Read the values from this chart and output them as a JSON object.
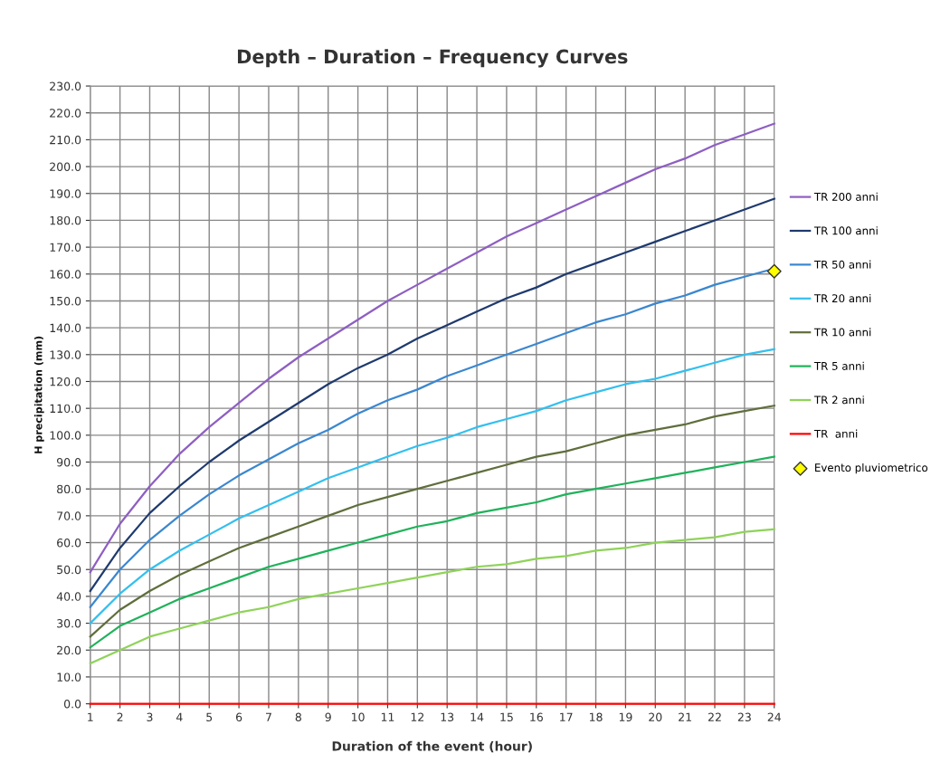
{
  "chart_data": {
    "type": "line",
    "title": "Depth – Duration – Frequency Curves",
    "xlabel": "Duration of the event (hour)",
    "ylabel": "H precipitation (mm)",
    "x": [
      1,
      2,
      3,
      4,
      5,
      6,
      7,
      8,
      9,
      10,
      11,
      12,
      13,
      14,
      15,
      16,
      17,
      18,
      19,
      20,
      21,
      22,
      23,
      24
    ],
    "xlim": [
      1,
      24
    ],
    "xticks": [
      1,
      2,
      3,
      4,
      5,
      6,
      7,
      8,
      9,
      10,
      11,
      12,
      13,
      14,
      15,
      16,
      17,
      18,
      19,
      20,
      21,
      22,
      23,
      24
    ],
    "ylim": [
      0,
      230
    ],
    "yticks": [
      {
        "value": 0,
        "label": "0.0"
      },
      {
        "value": 10,
        "label": "10.0"
      },
      {
        "value": 20,
        "label": "20.0"
      },
      {
        "value": 30,
        "label": "30.0"
      },
      {
        "value": 40,
        "label": "40.0"
      },
      {
        "value": 50,
        "label": "50.0"
      },
      {
        "value": 60,
        "label": "60.0"
      },
      {
        "value": 70,
        "label": "70.0"
      },
      {
        "value": 80,
        "label": "80.0"
      },
      {
        "value": 90,
        "label": "90.0"
      },
      {
        "value": 100,
        "label": "100.0"
      },
      {
        "value": 110,
        "label": "110.0"
      },
      {
        "value": 120,
        "label": "120.0"
      },
      {
        "value": 130,
        "label": "130.0"
      },
      {
        "value": 140,
        "label": "140.0"
      },
      {
        "value": 150,
        "label": "150.0"
      },
      {
        "value": 160,
        "label": "160.0"
      },
      {
        "value": 170,
        "label": "170.0"
      },
      {
        "value": 180,
        "label": "180.0"
      },
      {
        "value": 190,
        "label": "190.0"
      },
      {
        "value": 200,
        "label": "200.0"
      },
      {
        "value": 210,
        "label": "210.0"
      },
      {
        "value": 220,
        "label": "220.0"
      },
      {
        "value": 230,
        "label": "230.0"
      }
    ],
    "grid": true,
    "legend": "right",
    "marker": "none",
    "line_style": "solid",
    "series": [
      {
        "name": "TR 200 anni",
        "color": "#8e5fc2",
        "values": [
          49,
          67,
          81,
          93,
          103,
          112,
          121,
          129,
          136,
          143,
          150,
          156,
          162,
          168,
          174,
          179,
          184,
          189,
          194,
          199,
          203,
          208,
          212,
          216
        ]
      },
      {
        "name": "TR 100 anni",
        "color": "#1f3a6e",
        "values": [
          42,
          58,
          71,
          81,
          90,
          98,
          105,
          112,
          119,
          125,
          130,
          136,
          141,
          146,
          151,
          155,
          160,
          164,
          168,
          172,
          176,
          180,
          184,
          188
        ]
      },
      {
        "name": "TR 50 anni",
        "color": "#3a87d0",
        "values": [
          36,
          50,
          61,
          70,
          78,
          85,
          91,
          97,
          102,
          108,
          113,
          117,
          122,
          126,
          130,
          134,
          138,
          142,
          145,
          149,
          152,
          156,
          159,
          162
        ]
      },
      {
        "name": "TR 20 anni",
        "color": "#33bfef",
        "values": [
          30,
          41,
          50,
          57,
          63,
          69,
          74,
          79,
          84,
          88,
          92,
          96,
          99,
          103,
          106,
          109,
          113,
          116,
          119,
          121,
          124,
          127,
          130,
          132
        ]
      },
      {
        "name": "TR 10 anni",
        "color": "#5f6e3c",
        "values": [
          25,
          35,
          42,
          48,
          53,
          58,
          62,
          66,
          70,
          74,
          77,
          80,
          83,
          86,
          89,
          92,
          94,
          97,
          100,
          102,
          104,
          107,
          109,
          111
        ]
      },
      {
        "name": "TR 5 anni",
        "color": "#1fb25a",
        "values": [
          21,
          29,
          34,
          39,
          43,
          47,
          51,
          54,
          57,
          60,
          63,
          66,
          68,
          71,
          73,
          75,
          78,
          80,
          82,
          84,
          86,
          88,
          90,
          92
        ]
      },
      {
        "name": "TR 2 anni",
        "color": "#8fd35a",
        "values": [
          15,
          20,
          25,
          28,
          31,
          34,
          36,
          39,
          41,
          43,
          45,
          47,
          49,
          51,
          52,
          54,
          55,
          57,
          58,
          60,
          61,
          62,
          64,
          65
        ]
      },
      {
        "name": "TR  anni",
        "color": "#ff0000",
        "values": [
          0,
          0,
          0,
          0,
          0,
          0,
          0,
          0,
          0,
          0,
          0,
          0,
          0,
          0,
          0,
          0,
          0,
          0,
          0,
          0,
          0,
          0,
          0,
          0
        ]
      },
      {
        "name": "Evento pluviometrico",
        "type": "scatter",
        "marker": "diamond",
        "color": "#ffff00",
        "x": [
          24
        ],
        "values": [
          161
        ]
      }
    ]
  }
}
